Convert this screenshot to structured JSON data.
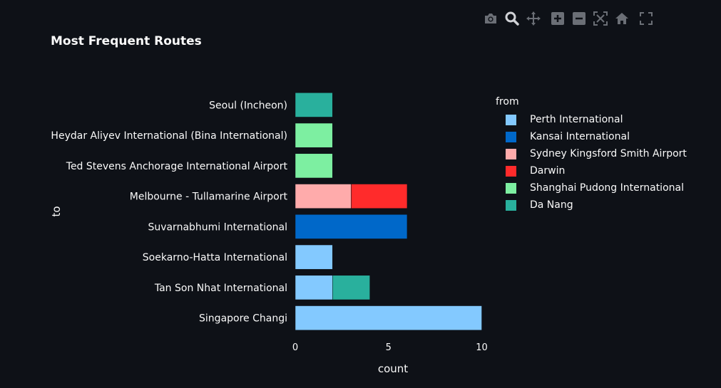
{
  "chart_data": {
    "type": "bar",
    "orientation": "horizontal",
    "barmode": "stack",
    "title": "Most Frequent Routes",
    "xlabel": "count",
    "ylabel": "to",
    "xlim": [
      0,
      10.4
    ],
    "xticks": [
      0,
      5,
      10
    ],
    "grid": false,
    "legend_title": "from",
    "legend_position": "right",
    "categories": [
      "Singapore Changi",
      "Tan Son Nhat International",
      "Soekarno-Hatta International",
      "Suvarnabhumi International",
      "Melbourne - Tullamarine Airport",
      "Ted Stevens Anchorage International Airport",
      "Heydar Aliyev International (Bina International)",
      "Seoul (Incheon)"
    ],
    "series": [
      {
        "name": "Perth International",
        "color": "#83c9ff",
        "values": [
          10,
          2,
          2,
          0,
          0,
          0,
          0,
          0
        ]
      },
      {
        "name": "Kansai International",
        "color": "#0068c9",
        "values": [
          0,
          0,
          0,
          6,
          0,
          0,
          0,
          0
        ]
      },
      {
        "name": "Sydney Kingsford Smith Airport",
        "color": "#ffabab",
        "values": [
          0,
          0,
          0,
          0,
          3,
          0,
          0,
          0
        ]
      },
      {
        "name": "Darwin",
        "color": "#ff2b2b",
        "values": [
          0,
          0,
          0,
          0,
          3,
          0,
          0,
          0
        ]
      },
      {
        "name": "Shanghai Pudong International",
        "color": "#7defa1",
        "values": [
          0,
          0,
          0,
          0,
          0,
          2,
          2,
          0
        ]
      },
      {
        "name": "Da Nang",
        "color": "#29b09d",
        "values": [
          0,
          2,
          0,
          0,
          0,
          0,
          0,
          2
        ]
      }
    ]
  },
  "modebar": {
    "buttons": [
      {
        "id": "camera",
        "icon": "camera-icon",
        "label": "Download plot as a png"
      },
      {
        "id": "zoom",
        "icon": "zoom-icon",
        "label": "Zoom"
      },
      {
        "id": "pan",
        "icon": "pan-icon",
        "label": "Pan"
      },
      {
        "id": "zoom-in",
        "icon": "zoom-in-icon",
        "label": "Zoom in"
      },
      {
        "id": "zoom-out",
        "icon": "zoom-out-icon",
        "label": "Zoom out"
      },
      {
        "id": "autoscale",
        "icon": "autoscale-icon",
        "label": "Autoscale"
      },
      {
        "id": "reset",
        "icon": "home-icon",
        "label": "Reset axes"
      },
      {
        "id": "fullscreen",
        "icon": "fullscreen-icon",
        "label": "Fullscreen"
      }
    ]
  },
  "theme": {
    "background": "#0e1117",
    "text": "#fafafa",
    "icon_muted": "#6b6f76",
    "icon_active": "#d0d2d6"
  }
}
